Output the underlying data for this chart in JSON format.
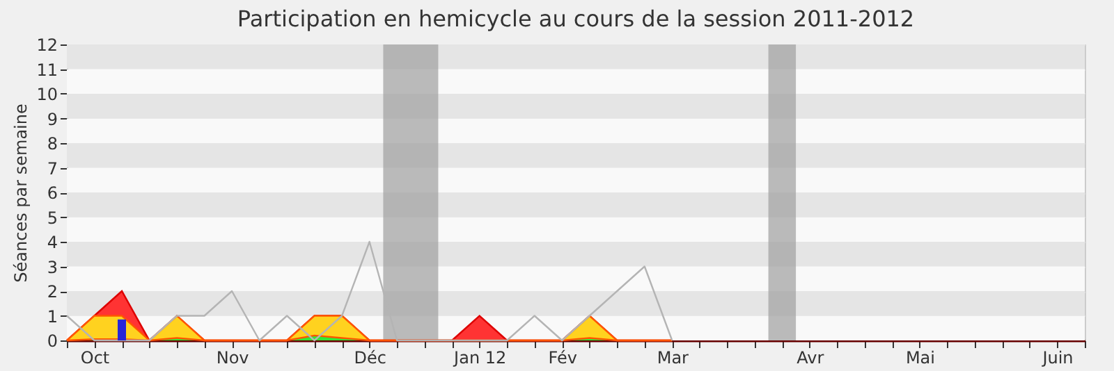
{
  "chart_data": {
    "type": "area",
    "title": "Participation en hemicycle au cours de la session 2011-2012",
    "ylabel": "Séances par semaine",
    "x": [
      "2011-10-03",
      "2011-10-10",
      "2011-10-17",
      "2011-10-24",
      "2011-10-31",
      "2011-11-07",
      "2011-11-14",
      "2011-11-21",
      "2011-11-28",
      "2011-12-05",
      "2011-12-12",
      "2011-12-19",
      "2011-12-26",
      "2012-01-02",
      "2012-01-09",
      "2012-01-16",
      "2012-01-23",
      "2012-01-30",
      "2012-02-06",
      "2012-02-13",
      "2012-02-20",
      "2012-02-27",
      "2012-03-05"
    ],
    "series": [
      {
        "color": "#ff3333",
        "values": [
          0,
          1,
          2,
          0,
          1,
          0,
          0,
          0,
          0,
          1,
          1,
          0,
          0,
          0,
          0,
          1,
          0,
          0,
          0,
          1,
          0,
          0,
          0
        ]
      },
      {
        "color": "#ffd21f",
        "values": [
          0,
          1,
          1,
          0,
          1,
          0,
          0,
          0,
          0,
          1,
          1,
          0,
          0,
          0,
          0,
          0,
          0,
          0,
          0,
          1,
          0,
          0,
          0
        ]
      },
      {
        "color": "#33e633",
        "values": [
          0,
          0.05,
          0.05,
          0,
          0.1,
          0,
          0,
          0,
          0,
          0.2,
          0.1,
          0,
          0,
          0,
          0,
          0,
          0,
          0,
          0,
          0.1,
          0,
          0,
          0
        ]
      },
      {
        "type": "line",
        "color": "#b4b4b4",
        "values": [
          1,
          0,
          0,
          0,
          1,
          1,
          2,
          0,
          1,
          0,
          1,
          4,
          0,
          0,
          0,
          0,
          0,
          1,
          0,
          1,
          2,
          3,
          0
        ]
      },
      {
        "type": "bar",
        "color": "#2626d9",
        "x": [
          "2011-10-17"
        ],
        "values": [
          0.85
        ]
      }
    ],
    "xlim": [
      "2011-10-03",
      "2012-06-18"
    ],
    "xticks": [
      {
        "value": "2011-10-03",
        "label": null
      },
      {
        "value": "2011-10-10",
        "label": "Oct"
      },
      {
        "value": "2011-10-17",
        "label": null
      },
      {
        "value": "2011-10-24",
        "label": null
      },
      {
        "value": "2011-10-31",
        "label": null
      },
      {
        "value": "2011-11-07",
        "label": null
      },
      {
        "value": "2011-11-14",
        "label": "Nov"
      },
      {
        "value": "2011-11-21",
        "label": null
      },
      {
        "value": "2011-11-28",
        "label": null
      },
      {
        "value": "2011-12-05",
        "label": null
      },
      {
        "value": "2011-12-12",
        "label": null
      },
      {
        "value": "2011-12-19",
        "label": "Déc"
      },
      {
        "value": "2011-12-26",
        "label": null
      },
      {
        "value": "2012-01-02",
        "label": null
      },
      {
        "value": "2012-01-09",
        "label": null
      },
      {
        "value": "2012-01-16",
        "label": "Jan 12"
      },
      {
        "value": "2012-01-23",
        "label": null
      },
      {
        "value": "2012-01-30",
        "label": null
      },
      {
        "value": "2012-02-06",
        "label": "Fév"
      },
      {
        "value": "2012-02-13",
        "label": null
      },
      {
        "value": "2012-02-20",
        "label": null
      },
      {
        "value": "2012-02-27",
        "label": null
      },
      {
        "value": "2012-03-05",
        "label": "Mar"
      },
      {
        "value": "2012-03-12",
        "label": null
      },
      {
        "value": "2012-03-19",
        "label": null
      },
      {
        "value": "2012-03-26",
        "label": null
      },
      {
        "value": "2012-04-02",
        "label": null
      },
      {
        "value": "2012-04-09",
        "label": "Avr"
      },
      {
        "value": "2012-04-16",
        "label": null
      },
      {
        "value": "2012-04-23",
        "label": null
      },
      {
        "value": "2012-04-30",
        "label": null
      },
      {
        "value": "2012-05-07",
        "label": "Mai"
      },
      {
        "value": "2012-05-14",
        "label": null
      },
      {
        "value": "2012-05-21",
        "label": null
      },
      {
        "value": "2012-05-28",
        "label": null
      },
      {
        "value": "2012-06-04",
        "label": null
      },
      {
        "value": "2012-06-11",
        "label": "Juin"
      },
      {
        "value": "2012-06-18",
        "label": null
      }
    ],
    "ylim": [
      0,
      12
    ],
    "yticks": [
      0,
      1,
      2,
      3,
      4,
      5,
      6,
      7,
      8,
      9,
      10,
      11,
      12
    ],
    "bands": [
      {
        "axis": "x",
        "from": "2011-12-22T12:00",
        "to": "2012-01-05T12:00",
        "color": "#a0a0a0"
      },
      {
        "axis": "x",
        "from": "2012-03-29T12:00",
        "to": "2012-04-05T12:00",
        "color": "#a0a0a0"
      }
    ],
    "grid": "y"
  }
}
